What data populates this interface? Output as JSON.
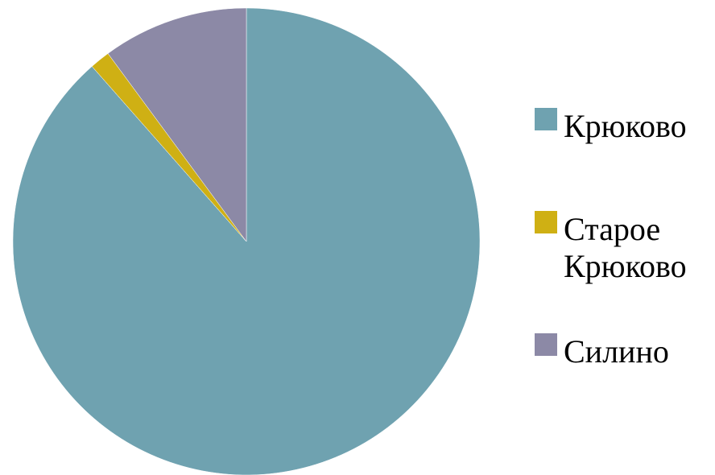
{
  "chart_data": {
    "type": "pie",
    "categories": [
      "Крюково",
      "Старое Крюково",
      "Силино"
    ],
    "values": [
      88.5,
      1.4,
      10.1
    ],
    "colors": [
      "#6fa2b0",
      "#cfb014",
      "#8c89a6"
    ],
    "legend_position": "right",
    "start_angle_deg": 0,
    "direction": "clockwise",
    "legend": [
      {
        "label": "Крюково",
        "display": "Крюково",
        "color": "#6fa2b0"
      },
      {
        "label": "Старое Крюково",
        "display": "Старое\nКрюково",
        "color": "#cfb014"
      },
      {
        "label": "Силино",
        "display": "Силино",
        "color": "#8c89a6"
      }
    ]
  }
}
